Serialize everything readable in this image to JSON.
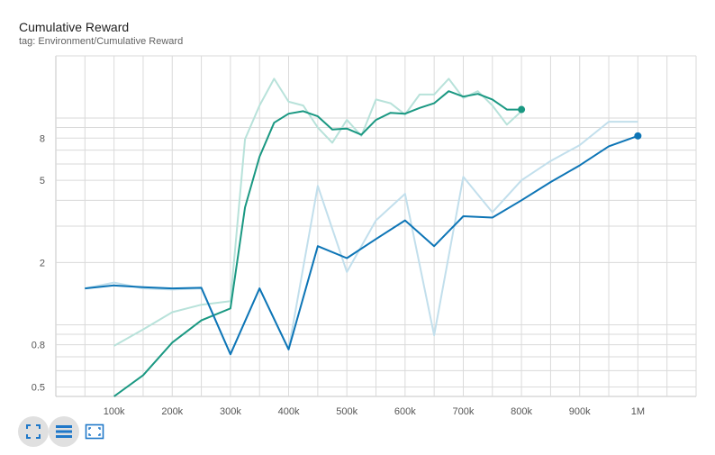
{
  "card": {
    "title": "Cumulative Reward",
    "subtitle": "tag: Environment/Cumulative Reward"
  },
  "colors": {
    "teal": "#1a9882",
    "teal_raw": "#b8e2da",
    "blue": "#0d75b6",
    "blue_raw": "#c2dfec",
    "grid": "#dadada",
    "icon": "#1f78c9"
  },
  "toolbar": {
    "buttons": [
      {
        "name": "fit-domain-icon",
        "active": true
      },
      {
        "name": "toggle-log-scale-icon",
        "active": true
      },
      {
        "name": "expand-chart-icon",
        "active": false
      }
    ]
  },
  "chart_data": {
    "type": "line",
    "title": "Cumulative Reward",
    "y_scale": "log",
    "xlim": [
      0,
      1100000
    ],
    "ylim": [
      0.45,
      20
    ],
    "x_ticks": [
      {
        "value": 100000,
        "label": "100k"
      },
      {
        "value": 200000,
        "label": "200k"
      },
      {
        "value": 300000,
        "label": "300k"
      },
      {
        "value": 400000,
        "label": "400k"
      },
      {
        "value": 500000,
        "label": "500k"
      },
      {
        "value": 600000,
        "label": "600k"
      },
      {
        "value": 700000,
        "label": "700k"
      },
      {
        "value": 800000,
        "label": "800k"
      },
      {
        "value": 900000,
        "label": "900k"
      },
      {
        "value": 1000000,
        "label": "1M"
      }
    ],
    "y_ticks": [
      {
        "value": 0.5,
        "label": "0.5"
      },
      {
        "value": 0.8,
        "label": "0.8"
      },
      {
        "value": 2,
        "label": "2"
      },
      {
        "value": 5,
        "label": "5"
      },
      {
        "value": 8,
        "label": "8"
      }
    ],
    "grid": true,
    "series": [
      {
        "color": "#1a9882",
        "raw_color": "#b8e2da",
        "x_raw": [
          100000,
          150000,
          200000,
          250000,
          300000,
          325000,
          350000,
          375000,
          400000,
          425000,
          450000,
          475000,
          500000,
          525000,
          550000,
          575000,
          600000,
          625000,
          650000,
          675000,
          700000,
          725000,
          750000,
          775000,
          800000
        ],
        "y_raw": [
          0.79,
          0.95,
          1.15,
          1.25,
          1.3,
          7.9,
          11.5,
          15.5,
          12.0,
          11.5,
          9.0,
          7.6,
          9.8,
          8.2,
          12.3,
          11.8,
          10.4,
          13.0,
          13.0,
          15.5,
          12.5,
          13.5,
          11.5,
          9.3,
          10.8
        ],
        "x": [
          100000,
          150000,
          200000,
          250000,
          300000,
          325000,
          350000,
          375000,
          400000,
          425000,
          450000,
          475000,
          500000,
          525000,
          550000,
          575000,
          600000,
          625000,
          650000,
          675000,
          700000,
          725000,
          750000,
          775000,
          800000
        ],
        "y": [
          0.4,
          0.57,
          0.82,
          1.05,
          1.2,
          3.7,
          6.5,
          9.5,
          10.5,
          10.8,
          10.2,
          8.8,
          8.9,
          8.3,
          9.8,
          10.6,
          10.5,
          11.2,
          11.8,
          13.5,
          12.7,
          13.1,
          12.3,
          11.0,
          11.0
        ]
      },
      {
        "color": "#0d75b6",
        "raw_color": "#c2dfec",
        "x_raw": [
          50000,
          100000,
          150000,
          200000,
          250000,
          300000,
          350000,
          400000,
          450000,
          500000,
          550000,
          600000,
          650000,
          700000,
          750000,
          800000,
          850000,
          900000,
          950000,
          1000000
        ],
        "y_raw": [
          1.5,
          1.6,
          1.5,
          1.48,
          1.5,
          0.72,
          1.5,
          0.76,
          4.7,
          1.8,
          3.2,
          4.3,
          0.89,
          5.2,
          3.5,
          5.0,
          6.2,
          7.4,
          9.6,
          9.6
        ],
        "x": [
          50000,
          100000,
          150000,
          200000,
          250000,
          300000,
          350000,
          400000,
          450000,
          500000,
          550000,
          600000,
          650000,
          700000,
          750000,
          800000,
          850000,
          900000,
          950000,
          1000000
        ],
        "y": [
          1.5,
          1.55,
          1.52,
          1.5,
          1.51,
          0.72,
          1.5,
          0.76,
          2.4,
          2.1,
          2.6,
          3.2,
          2.4,
          3.35,
          3.3,
          4.0,
          4.9,
          5.9,
          7.3,
          8.2
        ]
      }
    ]
  }
}
